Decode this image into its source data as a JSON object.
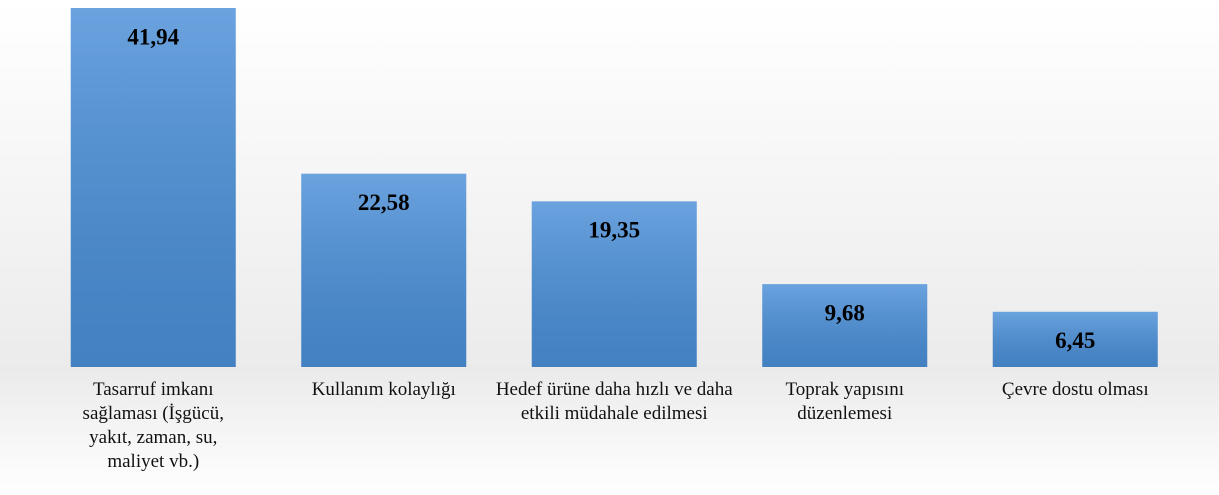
{
  "chart_data": {
    "type": "bar",
    "categories": [
      "Tasarruf imkanı sağlaması (İşgücü, yakıt, zaman, su, maliyet vb.)",
      "Kullanım kolaylığı",
      "Hedef ürüne daha hızlı ve daha etkili müdahale edilmesi",
      "Toprak yapısını düzenlemesi",
      "Çevre dostu olması"
    ],
    "values": [
      41.94,
      22.58,
      19.35,
      9.68,
      6.45
    ],
    "value_labels": [
      "41,94",
      "22,58",
      "19,35",
      "9,68",
      "6,45"
    ],
    "color": "#4a8fd8"
  }
}
